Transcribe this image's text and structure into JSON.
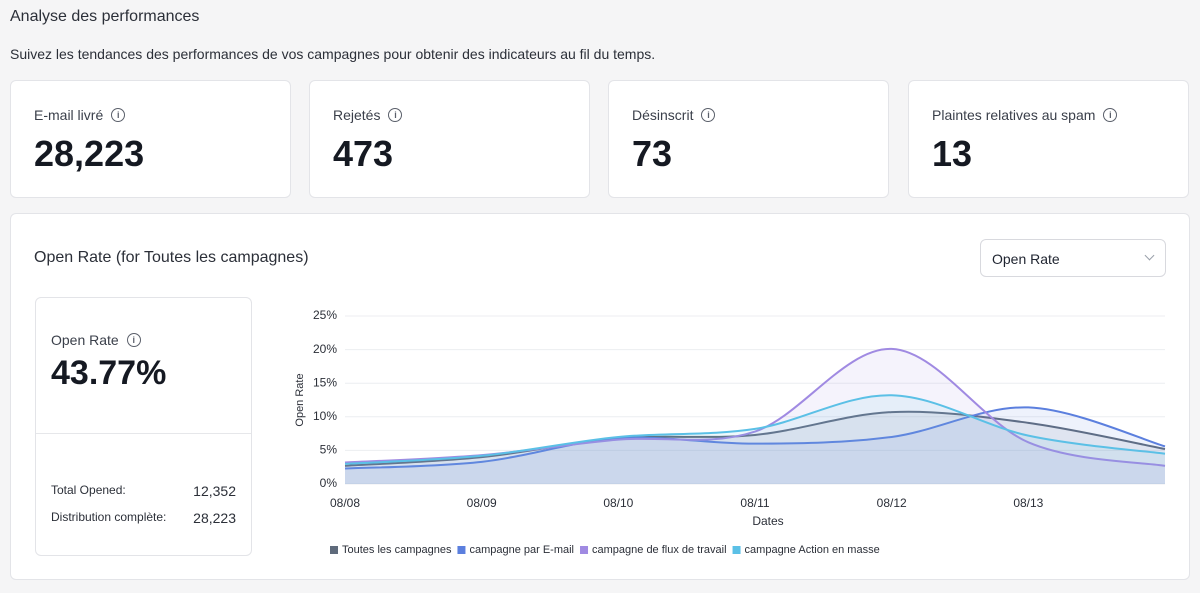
{
  "header": {
    "title": "Analyse des performances",
    "subtitle": "Suivez les tendances des performances de vos campagnes pour obtenir des indicateurs au fil du temps."
  },
  "stats": [
    {
      "label": "E-mail livré",
      "value": "28,223"
    },
    {
      "label": "Rejetés",
      "value": "473"
    },
    {
      "label": "Désinscrit",
      "value": "73"
    },
    {
      "label": "Plaintes relatives au spam",
      "value": "13"
    }
  ],
  "panel": {
    "title": "Open Rate (for Toutes les campagnes)",
    "dropdown": "Open Rate",
    "summary": {
      "label": "Open Rate",
      "value": "43.77%",
      "rows": [
        {
          "label": "Total Opened:",
          "value": "12,352"
        },
        {
          "label": "Distribution complète:",
          "value": "28,223"
        }
      ]
    }
  },
  "chart_data": {
    "type": "line",
    "x_label": "Dates",
    "y_label": "Open Rate",
    "categories": [
      "08/08",
      "08/09",
      "08/10",
      "08/11",
      "08/12",
      "08/13",
      null
    ],
    "series": [
      {
        "name": "Toutes les campagnes",
        "color": "#5f6b7c",
        "values": [
          2.7,
          4.0,
          6.8,
          7.3,
          10.7,
          9.1,
          5.2
        ]
      },
      {
        "name": "campagne par E-mail",
        "color": "#5b7fde",
        "values": [
          2.3,
          3.3,
          6.8,
          6.0,
          7.0,
          11.4,
          5.6
        ]
      },
      {
        "name": "campagne de flux de travail",
        "color": "#a08ae2",
        "values": [
          3.2,
          4.3,
          6.6,
          7.8,
          20.1,
          6.2,
          2.7
        ]
      },
      {
        "name": "campagne Action en masse",
        "color": "#5bc0e6",
        "values": [
          3.0,
          4.2,
          7.0,
          8.2,
          13.2,
          7.2,
          4.5
        ]
      }
    ],
    "ylim": [
      0,
      25
    ],
    "yticks": [
      {
        "value": 0,
        "label": "0%"
      },
      {
        "value": 5,
        "label": "5%"
      },
      {
        "value": 10,
        "label": "10%"
      },
      {
        "value": 15,
        "label": "15%"
      },
      {
        "value": 20,
        "label": "20%"
      },
      {
        "value": 25,
        "label": "25%"
      }
    ],
    "grid": true
  }
}
